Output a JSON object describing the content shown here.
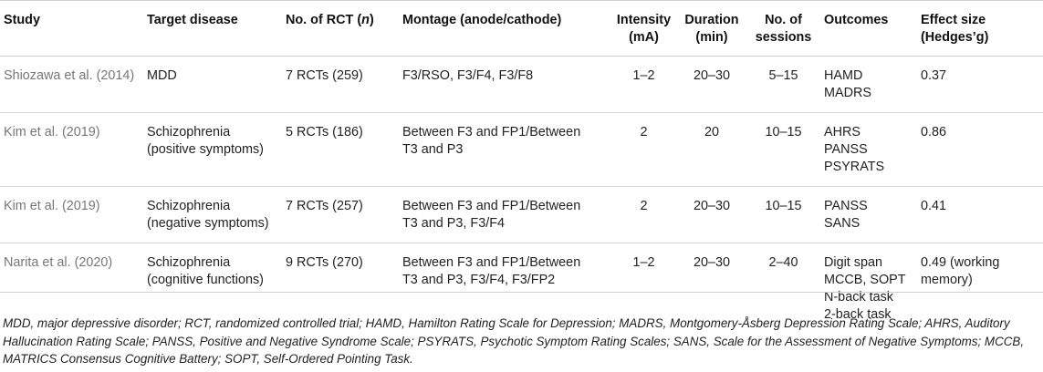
{
  "headers": {
    "study": "Study",
    "target_disease": "Target disease",
    "no_rct_prefix": "No. of RCT (",
    "no_rct_n": "n",
    "no_rct_suffix": ")",
    "montage": "Montage (anode/cathode)",
    "intensity": [
      "Intensity",
      "(mA)"
    ],
    "duration": [
      "Duration",
      "(min)"
    ],
    "sessions": [
      "No. of",
      "sessions"
    ],
    "outcomes": "Outcomes",
    "effect_size": [
      "Effect size",
      "(Hedges’g)"
    ]
  },
  "rows": [
    {
      "study": "Shiozawa et al. (2014)",
      "disease": [
        "MDD"
      ],
      "rct": "7 RCTs (259)",
      "montage": [
        "F3/RSO, F3/F4, F3/F8"
      ],
      "intensity": "1–2",
      "duration": "20–30",
      "sessions": "5–15",
      "outcomes": [
        "HAMD",
        "MADRS"
      ],
      "effect": [
        "0.37"
      ]
    },
    {
      "study": "Kim et al. (2019)",
      "disease": [
        "Schizophrenia",
        "(positive symptoms)"
      ],
      "rct": "5 RCTs (186)",
      "montage": [
        "Between F3 and FP1/Between",
        "T3 and P3"
      ],
      "intensity": "2",
      "duration": "20",
      "sessions": "10–15",
      "outcomes": [
        "AHRS",
        "PANSS",
        "PSYRATS"
      ],
      "effect": [
        "0.86"
      ]
    },
    {
      "study": "Kim et al. (2019)",
      "disease": [
        "Schizophrenia",
        "(negative symptoms)"
      ],
      "rct": "7 RCTs (257)",
      "montage": [
        "Between F3 and FP1/Between",
        "T3 and P3, F3/F4"
      ],
      "intensity": "2",
      "duration": "20–30",
      "sessions": "10–15",
      "outcomes": [
        "PANSS",
        "SANS"
      ],
      "effect": [
        "0.41"
      ]
    },
    {
      "study": "Narita et al. (2020)",
      "disease": [
        "Schizophrenia",
        "(cognitive functions)"
      ],
      "rct": "9 RCTs (270)",
      "montage": [
        "Between F3 and FP1/Between",
        "T3 and P3, F3/F4, F3/FP2"
      ],
      "intensity": "1–2",
      "duration": "20–30",
      "sessions": "2–40",
      "outcomes": [
        "Digit span",
        "MCCB, SOPT",
        "N-back task",
        "2-back task"
      ],
      "effect": [
        "0.49 (working",
        "memory)"
      ]
    }
  ],
  "footnote": "MDD, major depressive disorder; RCT, randomized controlled trial; HAMD, Hamilton Rating Scale for Depression; MADRS, Montgomery-Åsberg Depression Rating Scale; AHRS, Auditory Hallucination Rating Scale; PANSS, Positive and Negative Syndrome Scale; PSYRATS, Psychotic Symptom Rating Scales; SANS, Scale for the Assessment of Negative Symptoms; MCCB, MATRICS Consensus Cognitive Battery; SOPT, Self-Ordered Pointing Task."
}
